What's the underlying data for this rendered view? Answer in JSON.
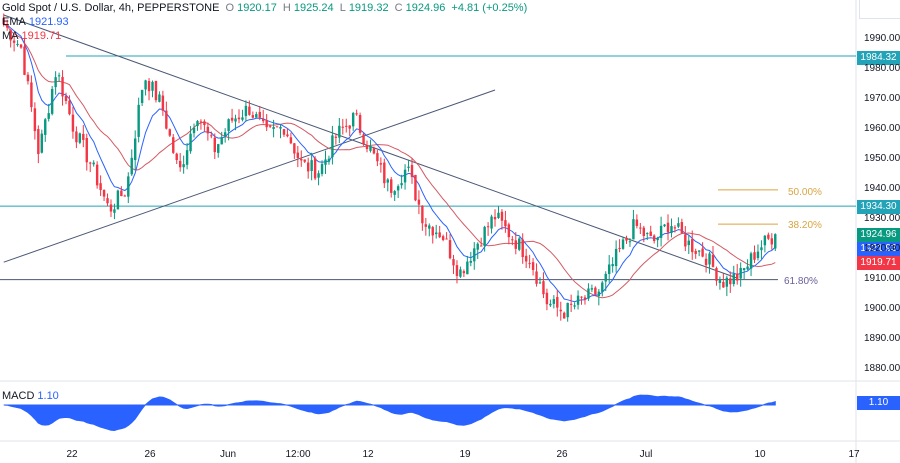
{
  "header": {
    "symbol": "Gold Spot / U.S. Dollar, 4h, PEPPERSTONE",
    "o_label": "O",
    "o_value": "1920.17",
    "h_label": "H",
    "h_value": "1925.24",
    "l_label": "L",
    "l_value": "1919.32",
    "c_label": "C",
    "c_value": "1924.96",
    "change": "+4.81 (+0.25%)",
    "ema_label": "EMA",
    "ema_value": "1921.93",
    "ma_label": "MA",
    "ma_value": "1919.71"
  },
  "macd": {
    "label": "MACD",
    "value": "1.10",
    "tag": "1.10"
  },
  "price_axis": {
    "ticks": [
      "1990.00",
      "1980.00",
      "1970.00",
      "1960.00",
      "1950.00",
      "1940.00",
      "1930.00",
      "1920.00",
      "1910.00",
      "1900.00",
      "1890.00",
      "1880.00"
    ]
  },
  "price_tags": {
    "level_high": "1984.32",
    "level_mid": "1934.30",
    "close": "1924.96",
    "ema": "1921.93",
    "ma": "1919.71"
  },
  "fib_labels": {
    "f50": "50.00%",
    "f382": "38.20%",
    "f618": "61.80%"
  },
  "time_axis": {
    "labels": [
      "22",
      "26",
      "Jun",
      "12:00",
      "12",
      "19",
      "26",
      "Jul",
      "10",
      "17"
    ]
  },
  "colors": {
    "up": "#089981",
    "down": "#f23645",
    "ema": "#2962ff",
    "ma": "#d45a63",
    "level": "#22a3b8",
    "fib": "#d9a441",
    "fib618": "#787b86",
    "trend": "#4a5775",
    "macd": "#2962ff"
  },
  "chart_data": {
    "type": "candlestick",
    "y_range": [
      1875,
      1997
    ],
    "horizontal_levels": [
      1984.32,
      1934.3,
      1909.8
    ],
    "fib_levels": [
      {
        "label": "50.00%",
        "price": 1939.7
      },
      {
        "label": "38.20%",
        "price": 1928.3
      },
      {
        "label": "61.80%",
        "price": 1909.8
      }
    ],
    "trendlines": [
      {
        "name": "descending",
        "from_bar": 0,
        "from_price": 1998,
        "to_bar": 212,
        "to_price": 1910.3
      },
      {
        "name": "ascending",
        "from_bar": 0,
        "from_price": 1915.6,
        "to_bar": 142,
        "to_price": 1973
      }
    ],
    "key_points": [
      1995,
      1987,
      1952,
      1980,
      1960,
      1948,
      1933,
      1940,
      1978,
      1968,
      1945,
      1966,
      1953,
      1963,
      1967,
      1958,
      1961,
      1948,
      1946,
      1958,
      1964,
      1952,
      1940,
      1947,
      1929,
      1925,
      1912,
      1922,
      1931,
      1924,
      1917,
      1902,
      1899,
      1903,
      1906,
      1918,
      1928,
      1922,
      1929,
      1922,
      1918,
      1909,
      1911,
      1920,
      1925
    ],
    "ema": {
      "name": "EMA",
      "last": 1921.93
    },
    "ma": {
      "name": "MA",
      "last": 1919.71
    },
    "macd_last": 1.1
  }
}
